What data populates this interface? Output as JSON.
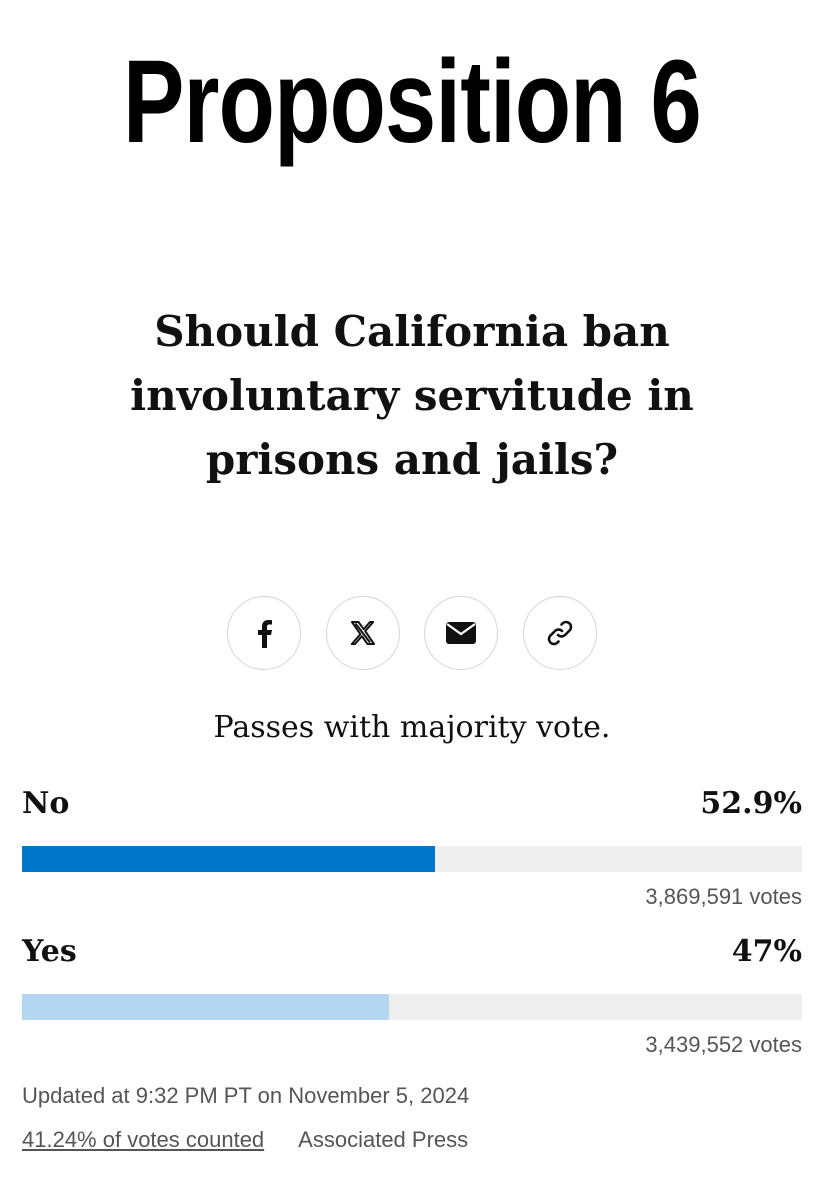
{
  "title": "Proposition 6",
  "question": "Should California ban involuntary servitude in prisons and jails?",
  "share": {
    "buttons": [
      {
        "icon": "facebook-icon"
      },
      {
        "icon": "x-icon"
      },
      {
        "icon": "email-icon"
      },
      {
        "icon": "link-icon"
      }
    ]
  },
  "rule": "Passes with majority vote.",
  "results": [
    {
      "label": "No",
      "percent_text": "52.9%",
      "percent": 52.9,
      "votes": "3,869,591 votes",
      "color": "#0276c8"
    },
    {
      "label": "Yes",
      "percent_text": "47%",
      "percent": 47,
      "votes": "3,439,552 votes",
      "color": "#b3d7f1"
    }
  ],
  "updated": "Updated at 9:32 PM PT on November 5, 2024",
  "footer": {
    "counted_link": "41.24% of votes counted",
    "source": "Associated Press"
  }
}
